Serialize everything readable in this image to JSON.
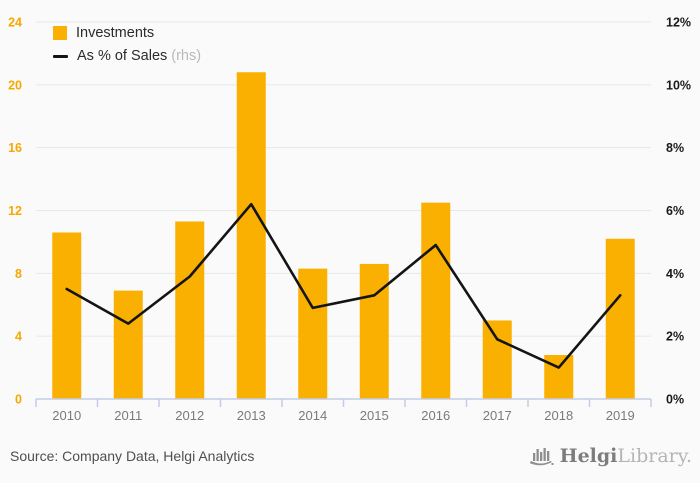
{
  "legend": {
    "investments_label": "Investments",
    "sales_label": "As % of Sales",
    "sales_suffix": "(rhs)"
  },
  "footer": {
    "source": "Source: Company Data, Helgi Analytics",
    "logo_primary": "Helgi",
    "logo_secondary": "Library."
  },
  "colors": {
    "bar": "#F9B000",
    "line": "#141414",
    "left_axis_label": "#F5A800",
    "right_axis_label": "#1a1a1a",
    "x_axis_label": "#7a7a7a",
    "gridline": "#e8e8e8",
    "axis_line": "#c5cce6",
    "background": "#fafafa"
  },
  "chart_data": {
    "type": "bar",
    "categories": [
      "2010",
      "2011",
      "2012",
      "2013",
      "2014",
      "2015",
      "2016",
      "2017",
      "2018",
      "2019"
    ],
    "series": [
      {
        "name": "Investments",
        "type": "bar",
        "axis": "left",
        "values": [
          10.6,
          6.9,
          11.3,
          20.8,
          8.3,
          8.6,
          12.5,
          5.0,
          2.8,
          10.2
        ]
      },
      {
        "name": "As % of Sales (rhs)",
        "type": "line",
        "axis": "right",
        "values": [
          3.5,
          2.4,
          3.9,
          6.2,
          2.9,
          3.3,
          4.9,
          1.9,
          1.0,
          3.3
        ]
      }
    ],
    "title": "",
    "xlabel": "",
    "ylabel": "",
    "left_axis": {
      "min": 0,
      "max": 24,
      "tick_values": [
        0,
        4,
        8,
        12,
        16,
        20,
        24
      ],
      "tick_labels": [
        "0",
        "4",
        "8",
        "12",
        "16",
        "20",
        "24"
      ]
    },
    "right_axis": {
      "min": 0,
      "max": 12,
      "tick_values": [
        0,
        2,
        4,
        6,
        8,
        10,
        12
      ],
      "tick_labels": [
        "0%",
        "2%",
        "4%",
        "6%",
        "8%",
        "10%",
        "12%"
      ]
    },
    "grid": true,
    "legend_position": "top-left"
  }
}
